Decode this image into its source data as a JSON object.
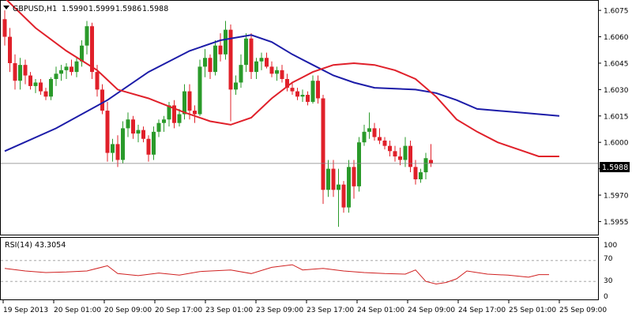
{
  "header": {
    "symbol": "GBPUSD,H1",
    "open": "1.5990",
    "high": "1.5999",
    "low": "1.5986",
    "close": "1.5988"
  },
  "rsi_panel": {
    "label": "RSI(14) 43.3054",
    "levels": [
      "100",
      "70",
      "30",
      "0"
    ]
  },
  "colors": {
    "bull": "#2a9a2a",
    "bear": "#e0202a",
    "ma_fast": "#e0202a",
    "ma_slow": "#1c1ca8",
    "rsi": "#d02020",
    "price_line": "#808080"
  },
  "chart_data": {
    "type": "candlestick",
    "y_axis_ticks": [
      "1.6075",
      "1.6060",
      "1.6045",
      "1.6030",
      "1.6015",
      "1.6000",
      "1.5985",
      "1.5970",
      "1.5955"
    ],
    "ylim": [
      1.5948,
      1.608
    ],
    "current_price": "1.5988",
    "x_axis_labels": [
      "19 Sep 2013",
      "20 Sep 01:00",
      "20 Sep 09:00",
      "20 Sep 17:00",
      "23 Sep 01:00",
      "23 Sep 09:00",
      "23 Sep 17:00",
      "24 Sep 01:00",
      "24 Sep 09:00",
      "24 Sep 17:00",
      "25 Sep 01:00",
      "25 Sep 09:00"
    ],
    "candles": [
      [
        1.607,
        1.6075,
        1.6055,
        1.606
      ],
      [
        1.606,
        1.6065,
        1.604,
        1.6045
      ],
      [
        1.6045,
        1.605,
        1.603,
        1.6035
      ],
      [
        1.6035,
        1.6048,
        1.603,
        1.6044
      ],
      [
        1.6044,
        1.6047,
        1.6033,
        1.6038
      ],
      [
        1.6038,
        1.604,
        1.603,
        1.6032
      ],
      [
        1.6032,
        1.6036,
        1.6028,
        1.6034
      ],
      [
        1.6034,
        1.6036,
        1.6027,
        1.6029
      ],
      [
        1.6029,
        1.6031,
        1.6024,
        1.6026
      ],
      [
        1.6026,
        1.6037,
        1.6024,
        1.6036
      ],
      [
        1.6036,
        1.6043,
        1.6032,
        1.6039
      ],
      [
        1.6039,
        1.6044,
        1.6035,
        1.6041
      ],
      [
        1.6041,
        1.6045,
        1.6036,
        1.6043
      ],
      [
        1.6043,
        1.6047,
        1.6038,
        1.604
      ],
      [
        1.604,
        1.6048,
        1.6037,
        1.6046
      ],
      [
        1.6046,
        1.6058,
        1.6043,
        1.6055
      ],
      [
        1.6055,
        1.6069,
        1.605,
        1.6066
      ],
      [
        1.6066,
        1.6068,
        1.6036,
        1.604
      ],
      [
        1.604,
        1.6044,
        1.6026,
        1.603
      ],
      [
        1.603,
        1.6033,
        1.6016,
        1.6018
      ],
      [
        1.6018,
        1.6023,
        1.5989,
        1.5994
      ],
      [
        1.5994,
        1.6002,
        1.5989,
        1.5999
      ],
      [
        1.5999,
        1.6004,
        1.5986,
        1.599
      ],
      [
        1.599,
        1.6012,
        1.5988,
        1.6008
      ],
      [
        1.6008,
        1.6017,
        1.6003,
        1.6013
      ],
      [
        1.6013,
        1.6015,
        1.6002,
        1.6005
      ],
      [
        1.6005,
        1.601,
        1.6,
        1.6007
      ],
      [
        1.6007,
        1.6009,
        1.6,
        1.6002
      ],
      [
        1.6002,
        1.6004,
        1.5989,
        1.5993
      ],
      [
        1.5993,
        1.6009,
        1.599,
        1.6006
      ],
      [
        1.6006,
        1.6013,
        1.6003,
        1.6011
      ],
      [
        1.6011,
        1.6015,
        1.6006,
        1.6013
      ],
      [
        1.6013,
        1.6023,
        1.6009,
        1.6021
      ],
      [
        1.6021,
        1.6024,
        1.6008,
        1.6011
      ],
      [
        1.6011,
        1.6019,
        1.6009,
        1.6016
      ],
      [
        1.6016,
        1.6033,
        1.6013,
        1.6029
      ],
      [
        1.6029,
        1.6033,
        1.6013,
        1.6018
      ],
      [
        1.6018,
        1.6021,
        1.6011,
        1.6016
      ],
      [
        1.6016,
        1.6047,
        1.6015,
        1.6043
      ],
      [
        1.6043,
        1.6053,
        1.6037,
        1.6048
      ],
      [
        1.6048,
        1.605,
        1.6036,
        1.604
      ],
      [
        1.604,
        1.6058,
        1.6038,
        1.6055
      ],
      [
        1.6055,
        1.6062,
        1.6046,
        1.605
      ],
      [
        1.605,
        1.6069,
        1.6047,
        1.6064
      ],
      [
        1.6064,
        1.6067,
        1.6012,
        1.603
      ],
      [
        1.603,
        1.6038,
        1.6027,
        1.6034
      ],
      [
        1.6034,
        1.605,
        1.6031,
        1.6044
      ],
      [
        1.6044,
        1.6062,
        1.604,
        1.6059
      ],
      [
        1.6059,
        1.6062,
        1.6036,
        1.604
      ],
      [
        1.604,
        1.6048,
        1.6036,
        1.6046
      ],
      [
        1.6046,
        1.6051,
        1.6041,
        1.6048
      ],
      [
        1.6048,
        1.6051,
        1.6042,
        1.6043
      ],
      [
        1.6043,
        1.6046,
        1.6037,
        1.6039
      ],
      [
        1.6039,
        1.6043,
        1.6035,
        1.6041
      ],
      [
        1.6041,
        1.6044,
        1.6034,
        1.6036
      ],
      [
        1.6036,
        1.6039,
        1.6029,
        1.6031
      ],
      [
        1.6031,
        1.6034,
        1.6027,
        1.6029
      ],
      [
        1.6029,
        1.6031,
        1.6024,
        1.6026
      ],
      [
        1.6026,
        1.603,
        1.6023,
        1.6027
      ],
      [
        1.6027,
        1.6029,
        1.6021,
        1.6023
      ],
      [
        1.6023,
        1.6038,
        1.6022,
        1.6035
      ],
      [
        1.6035,
        1.6038,
        1.6022,
        1.6025
      ],
      [
        1.6025,
        1.6027,
        1.5965,
        1.5973
      ],
      [
        1.5973,
        1.599,
        1.5969,
        1.5985
      ],
      [
        1.5985,
        1.599,
        1.5969,
        1.5973
      ],
      [
        1.5973,
        1.5985,
        1.5952,
        1.5976
      ],
      [
        1.5976,
        1.5978,
        1.596,
        1.5963
      ],
      [
        1.5963,
        1.599,
        1.596,
        1.5986
      ],
      [
        1.5986,
        1.599,
        1.5968,
        1.5975
      ],
      [
        1.5975,
        1.6003,
        1.5972,
        1.6
      ],
      [
        1.6,
        1.601,
        1.5998,
        1.6006
      ],
      [
        1.6006,
        1.6017,
        1.6002,
        1.6008
      ],
      [
        1.6008,
        1.6011,
        1.6001,
        1.6003
      ],
      [
        1.6003,
        1.6008,
        1.5999,
        1.6001
      ],
      [
        1.6001,
        1.6003,
        1.5996,
        1.5998
      ],
      [
        1.5998,
        1.6001,
        1.5992,
        1.5995
      ],
      [
        1.5995,
        1.5998,
        1.5989,
        1.5992
      ],
      [
        1.5992,
        1.5997,
        1.5987,
        1.599
      ],
      [
        1.599,
        1.6003,
        1.5986,
        1.5998
      ],
      [
        1.5998,
        1.6001,
        1.5983,
        1.5986
      ],
      [
        1.5986,
        1.599,
        1.5976,
        1.5979
      ],
      [
        1.5979,
        1.5985,
        1.5977,
        1.5983
      ],
      [
        1.5983,
        1.5994,
        1.5979,
        1.5991
      ],
      [
        1.599,
        1.5999,
        1.5986,
        1.5988
      ]
    ],
    "ma_fast": [
      [
        0,
        1.6082
      ],
      [
        6,
        1.6065
      ],
      [
        12,
        1.6052
      ],
      [
        18,
        1.6041
      ],
      [
        22,
        1.603
      ],
      [
        28,
        1.6025
      ],
      [
        35,
        1.6017
      ],
      [
        40,
        1.6012
      ],
      [
        44,
        1.601
      ],
      [
        48,
        1.6014
      ],
      [
        52,
        1.6025
      ],
      [
        56,
        1.6034
      ],
      [
        60,
        1.604
      ],
      [
        64,
        1.6044
      ],
      [
        68,
        1.6045
      ],
      [
        72,
        1.6044
      ],
      [
        76,
        1.6041
      ],
      [
        80,
        1.6036
      ],
      [
        84,
        1.6026
      ],
      [
        88,
        1.6013
      ],
      [
        92,
        1.6006
      ],
      [
        96,
        1.6
      ],
      [
        100,
        1.5996
      ],
      [
        104,
        1.5992
      ],
      [
        108,
        1.5992
      ]
    ],
    "ma_slow": [
      [
        0,
        1.5995
      ],
      [
        10,
        1.6008
      ],
      [
        20,
        1.6024
      ],
      [
        28,
        1.604
      ],
      [
        36,
        1.6052
      ],
      [
        42,
        1.6058
      ],
      [
        48,
        1.6061
      ],
      [
        52,
        1.6057
      ],
      [
        56,
        1.605
      ],
      [
        60,
        1.6044
      ],
      [
        64,
        1.6038
      ],
      [
        68,
        1.6034
      ],
      [
        72,
        1.6031
      ],
      [
        80,
        1.603
      ],
      [
        84,
        1.6028
      ],
      [
        88,
        1.6024
      ],
      [
        92,
        1.6019
      ],
      [
        100,
        1.6017
      ],
      [
        108,
        1.6015
      ]
    ],
    "rsi": [
      [
        0,
        55
      ],
      [
        4,
        50
      ],
      [
        8,
        47
      ],
      [
        12,
        48
      ],
      [
        16,
        50
      ],
      [
        20,
        60
      ],
      [
        22,
        45
      ],
      [
        26,
        41
      ],
      [
        30,
        46
      ],
      [
        34,
        42
      ],
      [
        38,
        49
      ],
      [
        44,
        52
      ],
      [
        48,
        45
      ],
      [
        52,
        57
      ],
      [
        56,
        62
      ],
      [
        58,
        52
      ],
      [
        62,
        55
      ],
      [
        66,
        50
      ],
      [
        70,
        47
      ],
      [
        74,
        45
      ],
      [
        78,
        44
      ],
      [
        80,
        52
      ],
      [
        82,
        30
      ],
      [
        84,
        25
      ],
      [
        86,
        28
      ],
      [
        88,
        35
      ],
      [
        90,
        50
      ],
      [
        94,
        44
      ],
      [
        98,
        42
      ],
      [
        102,
        38
      ],
      [
        104,
        43
      ],
      [
        106,
        43
      ]
    ],
    "rsi_levels": [
      70,
      30
    ]
  }
}
